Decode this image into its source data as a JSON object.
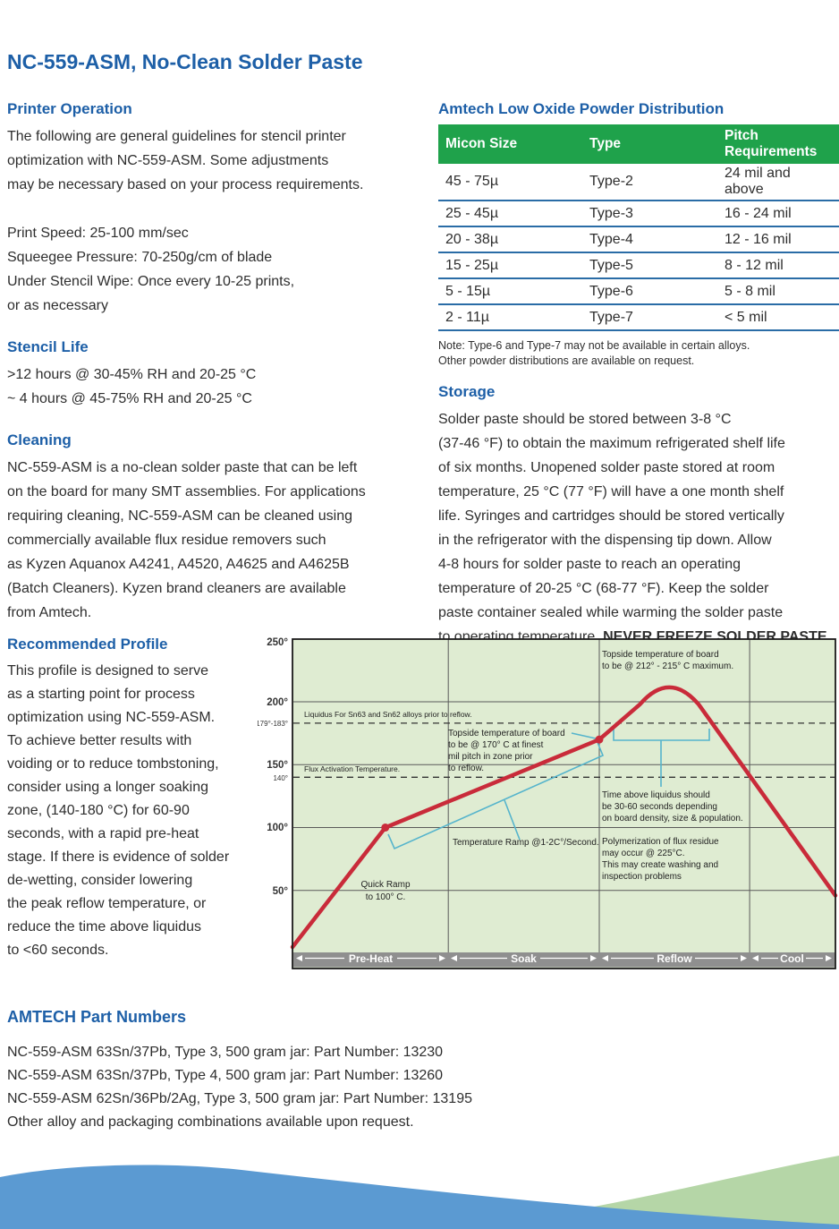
{
  "colors": {
    "accent_blue": "#1d5fa7",
    "table_green": "#1fa24b",
    "divider_blue": "#2a6ca6",
    "text": "#2e2e2e",
    "chart_bg": "#dfecd2",
    "curve_red": "#c92b3a",
    "annot_cyan": "#55b4cc",
    "band_gray": "#8f8f8f",
    "wave_blue": "#5b9ad2",
    "wave_green": "#b5d6a7"
  },
  "title": "NC-559-ASM, No-Clean Solder Paste",
  "left": {
    "printer_operation": {
      "heading": "Printer Operation",
      "intro_lines": [
        "The following are general guidelines for stencil printer",
        "optimization with NC-559-ASM.  Some adjustments",
        "may be necessary based on your process requirements."
      ],
      "spec_lines": [
        "Print Speed: 25-100 mm/sec",
        "Squeegee Pressure: 70-250g/cm of blade",
        "Under Stencil Wipe: Once every 10-25 prints,",
        "or as necessary"
      ]
    },
    "stencil_life": {
      "heading": "Stencil Life",
      "lines": [
        ">12 hours @ 30-45% RH and 20-25 °C",
        "~ 4 hours @ 45-75% RH and 20-25 °C"
      ]
    },
    "cleaning": {
      "heading": "Cleaning",
      "lines": [
        "NC-559-ASM is a no-clean solder paste that can be left",
        "on the board for many SMT assemblies. For applications",
        "requiring cleaning, NC-559-ASM can be cleaned using",
        "commercially available flux residue removers such",
        "as Kyzen Aquanox A4241, A4520, A4625 and A4625B",
        "(Batch Cleaners). Kyzen brand cleaners are available",
        "from Amtech."
      ]
    },
    "recommended_profile": {
      "heading": "Recommended Profile",
      "lines": [
        "This profile is designed to serve",
        "as a starting point for process",
        "optimization using NC-559-ASM.",
        "To achieve better results with",
        "voiding or to reduce tombstoning,",
        "consider using a longer soaking",
        "zone, (140-180 °C) for 60-90",
        "seconds, with a rapid pre-heat",
        "stage. If there is evidence of solder",
        "de-wetting, consider lowering",
        "the peak reflow temperature, or",
        "reduce the time above liquidus",
        "to <60 seconds."
      ]
    }
  },
  "right": {
    "table": {
      "heading": "Amtech Low Oxide Powder Distribution",
      "columns": [
        "Micon Size",
        "Type",
        "Pitch Requirements"
      ],
      "rows": [
        [
          "45 - 75µ",
          "Type-2",
          "24 mil and above"
        ],
        [
          "25 - 45µ",
          "Type-3",
          "16 - 24 mil"
        ],
        [
          "20 - 38µ",
          "Type-4",
          "12 - 16 mil"
        ],
        [
          "15 - 25µ",
          "Type-5",
          "8 - 12 mil"
        ],
        [
          "5 - 15µ",
          "Type-6",
          "5 - 8 mil"
        ],
        [
          "2 - 11µ",
          "Type-7",
          "< 5 mil"
        ]
      ],
      "note_lines": [
        "Note: Type-6 and Type-7 may not be available in certain alloys.",
        "Other powder distributions are available on request."
      ]
    },
    "storage": {
      "heading": "Storage",
      "lines": [
        "Solder paste should be stored between 3-8 °C",
        "(37-46 °F) to obtain the maximum refrigerated shelf life",
        "of six months. Unopened solder paste stored at room",
        "temperature, 25 °C (77 °F) will have a one month shelf",
        "life. Syringes and cartridges should be stored vertically",
        "in the refrigerator with the dispensing tip down. Allow",
        "4-8 hours for solder paste to reach an operating",
        "temperature of 20-25 °C (68-77 °F). Keep the solder",
        "paste container sealed while warming the solder paste",
        "to operating temperature. "
      ],
      "bold": "NEVER FREEZE SOLDER PASTE",
      "tail": "."
    }
  },
  "part_numbers": {
    "heading": "AMTECH Part Numbers",
    "lines": [
      "NC-559-ASM 63Sn/37Pb, Type 3, 500 gram jar: Part Number: 13230",
      "NC-559-ASM 63Sn/37Pb, Type 4, 500 gram jar: Part Number: 13260",
      "NC-559-ASM 62Sn/36Pb/2Ag, Type 3, 500 gram jar: Part Number: 13195",
      "Other alloy and packaging combinations available upon request."
    ]
  },
  "chart": {
    "y_ticks": [
      "250°",
      "200°",
      "150°",
      "100°",
      "50°"
    ],
    "threshold_ticks": [
      "179°-183°",
      "140°"
    ],
    "zones": [
      "Pre-Heat",
      "Soak",
      "Reflow",
      "Cool"
    ],
    "annotations": {
      "liquidus": "Liquidus For Sn63 and Sn62 alloys prior to reflow.",
      "flux": "Flux Activation Temperature.",
      "topside_soak": [
        "Topside temperature of board",
        "to be @ 170° C at finest",
        "mil pitch in zone prior",
        "to reflow."
      ],
      "topside_peak": [
        "Topside temperature of board",
        "to be @ 212° - 215° C maximum."
      ],
      "time_above": [
        "Time above liquidus should",
        "be 30-60 seconds depending",
        "on board density, size & population."
      ],
      "ramp": "Temperature Ramp @1-2C°/Second.",
      "quick_ramp": [
        "Quick Ramp",
        "to 100° C."
      ],
      "polymerization": [
        "Polymerization of flux residue",
        "may occur @ 225°C.",
        "This may create washing and",
        "inspection problems"
      ]
    }
  },
  "chart_data": {
    "type": "line",
    "ylim": [
      0,
      250
    ],
    "y_gridlines": [
      250,
      200,
      150,
      100,
      50
    ],
    "dashed_thresholds": [
      {
        "temp_range": "179-183",
        "label": "Liquidus For Sn63 and Sn62 alloys prior to reflow."
      },
      {
        "temp_range": "140",
        "label": "Flux Activation Temperature."
      }
    ],
    "zones": [
      "Pre-Heat",
      "Soak",
      "Reflow",
      "Cool"
    ],
    "zone_boundaries_pct": [
      28.7,
      56.5,
      84.2
    ],
    "curve_points": [
      {
        "x": 0,
        "t": 5
      },
      {
        "x": 17.1,
        "t": 100,
        "m": 1
      },
      {
        "x": 56.5,
        "t": 170,
        "m": 1
      },
      {
        "x": 64,
        "t": 198
      },
      {
        "x": 69.4,
        "t": 225,
        "c": 1
      },
      {
        "x": 74.8,
        "t": 198
      },
      {
        "x": 100,
        "t": 46
      }
    ],
    "peak_temp_label": "212° - 215° C maximum",
    "marker_temps": [
      100,
      170
    ]
  }
}
